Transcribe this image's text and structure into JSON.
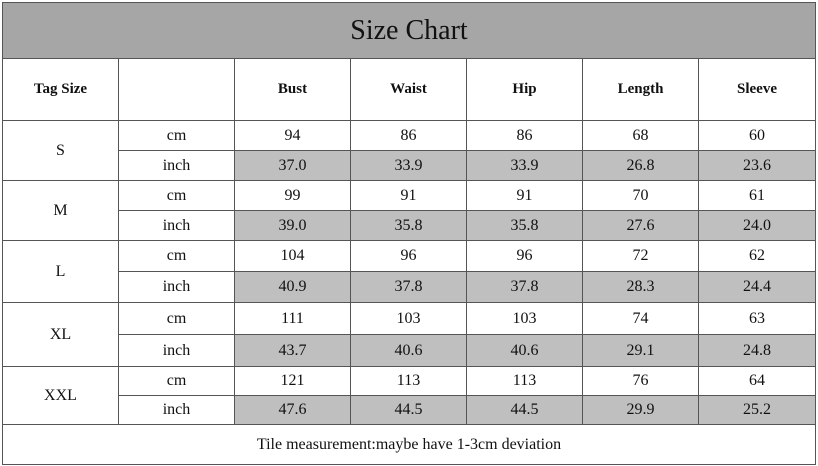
{
  "title": "Size Chart",
  "header": {
    "tag_size": "Tag Size",
    "columns": [
      "Bust",
      "Waist",
      "Hip",
      "Length",
      "Sleeve"
    ]
  },
  "units": [
    "cm",
    "inch"
  ],
  "rows": [
    {
      "size": "S",
      "cm": [
        "94",
        "86",
        "86",
        "68",
        "60"
      ],
      "inch": [
        "37.0",
        "33.9",
        "33.9",
        "26.8",
        "23.6"
      ]
    },
    {
      "size": "M",
      "cm": [
        "99",
        "91",
        "91",
        "70",
        "61"
      ],
      "inch": [
        "39.0",
        "35.8",
        "35.8",
        "27.6",
        "24.0"
      ]
    },
    {
      "size": "L",
      "cm": [
        "104",
        "96",
        "96",
        "72",
        "62"
      ],
      "inch": [
        "40.9",
        "37.8",
        "37.8",
        "28.3",
        "24.4"
      ]
    },
    {
      "size": "XL",
      "cm": [
        "111",
        "103",
        "103",
        "74",
        "63"
      ],
      "inch": [
        "43.7",
        "40.6",
        "40.6",
        "29.1",
        "24.8"
      ]
    },
    {
      "size": "XXL",
      "cm": [
        "121",
        "113",
        "113",
        "76",
        "64"
      ],
      "inch": [
        "47.6",
        "44.5",
        "44.5",
        "29.9",
        "25.2"
      ]
    }
  ],
  "note": "Tile measurement:maybe have 1-3cm deviation"
}
